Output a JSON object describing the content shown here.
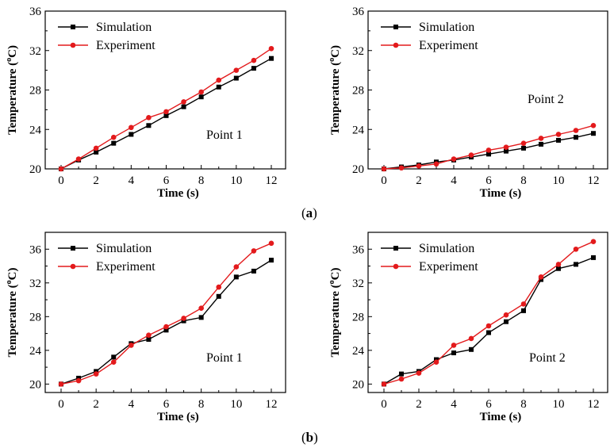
{
  "captions": [
    "(a)",
    "(b)"
  ],
  "caption_parts": {
    "a": "a",
    "b": "b"
  },
  "colors": {
    "Simulation": "#000000",
    "Experiment": "#e31a1c"
  },
  "chart_data": [
    {
      "type": "line",
      "xlabel": "Time (s)",
      "ylabel": "Temperature (oC)",
      "xlim": [
        0,
        12
      ],
      "ylim": [
        20,
        36
      ],
      "xticks": [
        0,
        2,
        4,
        6,
        8,
        10,
        12
      ],
      "yticks": [
        20,
        24,
        28,
        32,
        36
      ],
      "legend_position": "top-left",
      "annotation": "Point 1",
      "x": [
        0,
        1,
        2,
        3,
        4,
        5,
        6,
        7,
        8,
        9,
        10,
        11,
        12
      ],
      "series": [
        {
          "name": "Simulation",
          "marker": "square",
          "values": [
            20,
            20.9,
            21.7,
            22.6,
            23.5,
            24.4,
            25.4,
            26.3,
            27.3,
            28.3,
            29.2,
            30.2,
            31.2
          ]
        },
        {
          "name": "Experiment",
          "marker": "circle",
          "values": [
            20,
            21.0,
            22.1,
            23.2,
            24.2,
            25.2,
            25.8,
            26.8,
            27.8,
            29.0,
            30.0,
            31.0,
            32.2
          ]
        }
      ]
    },
    {
      "type": "line",
      "xlabel": "Time (s)",
      "ylabel": "Temperature (oC)",
      "xlim": [
        0,
        12
      ],
      "ylim": [
        20,
        36
      ],
      "xticks": [
        0,
        2,
        4,
        6,
        8,
        10,
        12
      ],
      "yticks": [
        20,
        24,
        28,
        32,
        36
      ],
      "legend_position": "top-left",
      "annotation": "Point 2",
      "x": [
        0,
        1,
        2,
        3,
        4,
        5,
        6,
        7,
        8,
        9,
        10,
        11,
        12
      ],
      "series": [
        {
          "name": "Simulation",
          "marker": "square",
          "values": [
            20,
            20.2,
            20.4,
            20.7,
            20.9,
            21.2,
            21.5,
            21.8,
            22.1,
            22.5,
            22.9,
            23.2,
            23.6
          ]
        },
        {
          "name": "Experiment",
          "marker": "circle",
          "values": [
            20,
            20.1,
            20.3,
            20.5,
            21.0,
            21.4,
            21.9,
            22.2,
            22.6,
            23.1,
            23.5,
            23.9,
            24.4
          ]
        }
      ]
    },
    {
      "type": "line",
      "xlabel": "Time (s)",
      "ylabel": "Temperature (oC)",
      "xlim": [
        0,
        12
      ],
      "ylim": [
        19,
        38
      ],
      "xticks": [
        0,
        2,
        4,
        6,
        8,
        10,
        12
      ],
      "yticks": [
        20,
        24,
        28,
        32,
        36
      ],
      "legend_position": "top-left",
      "annotation": "Point 1",
      "x": [
        0,
        1,
        2,
        3,
        4,
        5,
        6,
        7,
        8,
        9,
        10,
        11,
        12
      ],
      "series": [
        {
          "name": "Simulation",
          "marker": "square",
          "values": [
            20,
            20.7,
            21.5,
            23.2,
            24.8,
            25.3,
            26.4,
            27.5,
            27.9,
            30.4,
            32.7,
            33.4,
            34.7
          ]
        },
        {
          "name": "Experiment",
          "marker": "circle",
          "values": [
            20,
            20.4,
            21.2,
            22.6,
            24.6,
            25.8,
            26.8,
            27.8,
            29.0,
            31.5,
            33.9,
            35.8,
            36.7
          ]
        }
      ]
    },
    {
      "type": "line",
      "xlabel": "Time (s)",
      "ylabel": "Temperature (oC)",
      "xlim": [
        0,
        12
      ],
      "ylim": [
        19,
        38
      ],
      "xticks": [
        0,
        2,
        4,
        6,
        8,
        10,
        12
      ],
      "yticks": [
        20,
        24,
        28,
        32,
        36
      ],
      "legend_position": "top-left",
      "annotation": "Point 2",
      "x": [
        0,
        1,
        2,
        3,
        4,
        5,
        6,
        7,
        8,
        9,
        10,
        11,
        12
      ],
      "series": [
        {
          "name": "Simulation",
          "marker": "square",
          "values": [
            20,
            21.2,
            21.5,
            22.9,
            23.7,
            24.1,
            26.1,
            27.4,
            28.7,
            32.4,
            33.7,
            34.2,
            35.0
          ]
        },
        {
          "name": "Experiment",
          "marker": "circle",
          "values": [
            20,
            20.6,
            21.3,
            22.6,
            24.6,
            25.4,
            26.9,
            28.2,
            29.5,
            32.7,
            34.2,
            36.0,
            36.9
          ]
        }
      ]
    }
  ]
}
